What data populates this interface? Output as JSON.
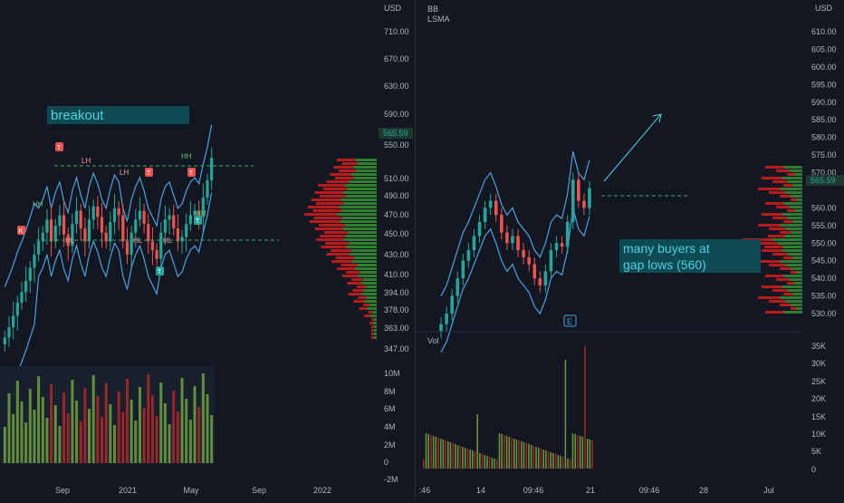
{
  "left_chart": {
    "currency": "USD",
    "price_axis": [
      "710.00",
      "670.00",
      "630.00",
      "590.00",
      "565.59",
      "550.00",
      "510.00",
      "490.00",
      "470.00",
      "450.00",
      "430.00",
      "410.00",
      "394.00",
      "378.00",
      "363.00",
      "347.00"
    ],
    "last_price": "565.59",
    "volume_axis": [
      "10M",
      "8M",
      "6M",
      "4M",
      "2M",
      "0",
      "-2M"
    ],
    "time_axis": [
      "Sep",
      "2021",
      "May",
      "Sep",
      "2022"
    ],
    "annotation": "breakout",
    "swing_labels": [
      "LH",
      "LH",
      "HH",
      "HH",
      "HL",
      "HL",
      "HL",
      "HH"
    ],
    "markers": [
      "K",
      "T",
      "T",
      "T",
      "T",
      "T"
    ],
    "colors": {
      "up": "#26a69a",
      "down": "#ef5350",
      "band": "#4aa3df",
      "annotation_bg": "#0d4a52",
      "annotation_text": "#4dd0e1"
    }
  },
  "right_chart": {
    "currency": "USD",
    "indicator_labels": [
      "BB",
      "LSMA"
    ],
    "price_axis": [
      "610.00",
      "605.00",
      "600.00",
      "595.00",
      "590.00",
      "585.00",
      "580.00",
      "575.00",
      "570.00",
      "565.59",
      "560.00",
      "555.00",
      "550.00",
      "545.00",
      "540.00",
      "535.00",
      "530.00"
    ],
    "last_price": "565.59",
    "volume_label": "Vol",
    "volume_axis": [
      "35K",
      "30K",
      "25K",
      "20K",
      "15K",
      "10K",
      "5K",
      "0"
    ],
    "time_axis": [
      ":46",
      "14",
      "09:46",
      "21",
      "09:46",
      "28",
      "Jul"
    ],
    "annotation": "many buyers at gap lows (560)",
    "earnings_marker": "E"
  },
  "chart_data": [
    {
      "type": "candlestick",
      "title": "",
      "x_ticks": [
        "Sep",
        "2021",
        "May",
        "Sep",
        "2022"
      ],
      "y_ticks": [
        347,
        363,
        378,
        394,
        410,
        430,
        450,
        470,
        490,
        510,
        550,
        590,
        630,
        670,
        710
      ],
      "last": 565.59,
      "ohlc_close_approx": [
        360,
        372,
        385,
        400,
        412,
        425,
        440,
        455,
        470,
        480,
        495,
        470,
        488,
        500,
        478,
        465,
        490,
        505,
        485,
        470,
        495,
        510,
        498,
        480,
        470,
        492,
        508,
        500,
        470,
        455,
        480,
        495,
        505,
        490,
        470,
        460,
        450,
        480,
        495,
        500,
        485,
        470,
        475,
        490,
        500,
        505,
        498,
        520,
        540,
        565.59
      ]
    },
    {
      "type": "candlestick",
      "title": "",
      "x_ticks": [
        "14",
        "09:46",
        "21",
        "09:46",
        "28",
        "Jul"
      ],
      "y_ticks": [
        530,
        535,
        540,
        545,
        550,
        555,
        560,
        565,
        570,
        575,
        580,
        585,
        590,
        595,
        600,
        605,
        610
      ],
      "last": 565.59,
      "ohlc_close_approx": [
        527,
        530,
        535,
        540,
        545,
        548,
        552,
        556,
        560,
        562,
        558,
        553,
        550,
        552,
        548,
        546,
        544,
        540,
        538,
        542,
        548,
        550,
        549,
        556,
        568,
        562,
        560,
        565.59
      ],
      "volume_max": 35000
    }
  ]
}
